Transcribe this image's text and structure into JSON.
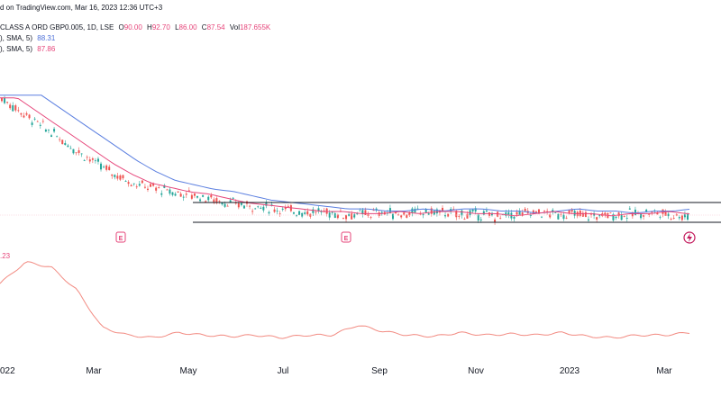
{
  "header": {
    "published": "d on TradingView.com, Mar 16, 2023 12:36 UTC+3",
    "symbol": "CLASS A ORD GBP0.005, 1D, LSE",
    "o_label": "O",
    "o_value": "90.00",
    "h_label": "H",
    "h_value": "92.70",
    "l_label": "L",
    "l_value": "86.00",
    "c_label": "C",
    "c_value": "87.54",
    "vol_label": "Vol",
    "vol_value": "187.655K",
    "sma1_label": "), SMA, 5)",
    "sma1_value": "88.31",
    "sma2_label": "), SMA, 5)",
    "sma2_value": "87.86"
  },
  "indicator": {
    "value_label": ".23"
  },
  "colors": {
    "candle_up": "#26a69a",
    "candle_down": "#ef5350",
    "sma_blue": "#5b7fe0",
    "sma_pink": "#e6457a",
    "indicator": "#f28b82",
    "earnings_marker": "#e6457a",
    "support_line": "#131722"
  },
  "earnings_markers": [
    "E",
    "E"
  ],
  "event_icon": "lightning-icon",
  "x_axis": {
    "labels": [
      "022",
      "Mar",
      "May",
      "Jul",
      "Sep",
      "Nov",
      "2023",
      "Mar"
    ]
  },
  "chart_data": {
    "type": "line",
    "series": [
      {
        "values": [
          142,
          136,
          130,
          124,
          118,
          112,
          107,
          103,
          101,
          99,
          98,
          96,
          94,
          93,
          92,
          91,
          90,
          90,
          89,
          89,
          90,
          89,
          90,
          90,
          89,
          89,
          88,
          89,
          90,
          89,
          89,
          88,
          89,
          89,
          90,
          89,
          88
        ]
      }
    ],
    "indicator_values": [
      55,
      72,
      68,
      50,
      20,
      14,
      12,
      16,
      14,
      13,
      14,
      12,
      14,
      14,
      22,
      17,
      14,
      13,
      16,
      14,
      15,
      14,
      16,
      13,
      12,
      14,
      14,
      16
    ]
  }
}
